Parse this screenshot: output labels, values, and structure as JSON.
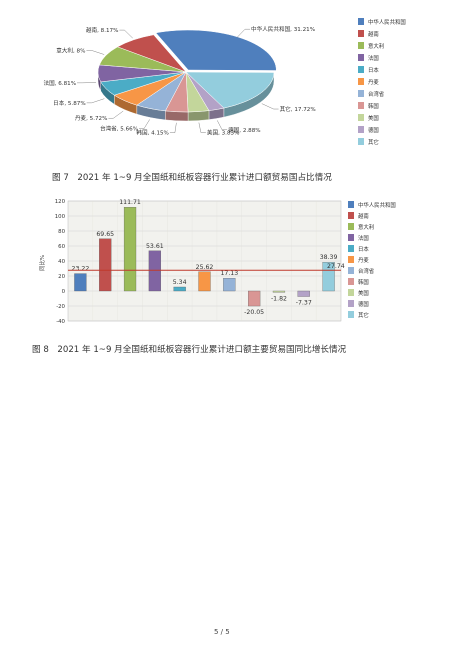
{
  "chart_data": [
    {
      "type": "pie",
      "categories": [
        "中华人民共和国",
        "其它",
        "德国",
        "美国",
        "韩国",
        "台湾省",
        "丹麦",
        "日本",
        "法国",
        "意大利",
        "越南"
      ],
      "values": [
        31.21,
        17.72,
        2.88,
        3.83,
        4.15,
        5.66,
        5.72,
        5.87,
        6.81,
        8.0,
        8.17
      ],
      "slice_labels": [
        "中华人民共和国, 31.21%",
        "其它, 17.72%",
        "德国, 2.88%",
        "美国, 3.83%",
        "韩国, 4.15%",
        "台湾省, 5.66%",
        "丹麦, 5.72%",
        "日本, 5.87%",
        "法国, 6.81%",
        "意大利, 8%",
        "越南, 8.17%"
      ],
      "legend": [
        "中华人民共和国",
        "越南",
        "意大利",
        "法国",
        "日本",
        "丹麦",
        "台湾省",
        "韩国",
        "美国",
        "德国",
        "其它"
      ],
      "legend_colors": [
        "#4f7fbd",
        "#c0504d",
        "#9bbb59",
        "#8064a2",
        "#4bacc6",
        "#f79646",
        "#95b3d7",
        "#d99694",
        "#c3d69b",
        "#b3a2c7",
        "#93cddd"
      ],
      "legend_position": "right",
      "caption": "图 7　2021 年 1~9 月全国纸和纸板容器行业累计进口额贸易国占比情况"
    },
    {
      "type": "bar",
      "categories": [
        "中华人民共和国",
        "越南",
        "意大利",
        "法国",
        "日本",
        "丹麦",
        "台湾省",
        "韩国",
        "美国",
        "德国",
        "其它"
      ],
      "values": [
        23.22,
        69.65,
        111.71,
        53.61,
        5.34,
        25.62,
        17.13,
        -20.05,
        -1.82,
        -7.37,
        38.39
      ],
      "value_labels": [
        "23.22",
        "69.65",
        "111.71",
        "53.61",
        "5.34",
        "25.62",
        "17.13",
        "-20.05",
        "-1.82",
        "-7.37",
        "38.39"
      ],
      "colors": [
        "#4f7fbd",
        "#c0504d",
        "#9bbb59",
        "#8064a2",
        "#4bacc6",
        "#f79646",
        "#95b3d7",
        "#d99694",
        "#c3d69b",
        "#b3a2c7",
        "#93cddd"
      ],
      "reference_line": 27.74,
      "reference_label": "27.74",
      "reference_color": "#c0392b",
      "ylabel": "同比%",
      "ylim": [
        -40,
        120
      ],
      "yticks": [
        "120",
        "100",
        "80",
        "60",
        "40",
        "20",
        "0",
        "-20",
        "-40"
      ],
      "grid": true,
      "legend": [
        "中华人民共和国",
        "越南",
        "意大利",
        "法国",
        "日本",
        "丹麦",
        "台湾省",
        "韩国",
        "美国",
        "德国",
        "其它"
      ],
      "legend_position": "right",
      "caption": "图 8　2021 年 1~9 月全国纸和纸板容器行业累计进口额主要贸易国同比增长情况"
    }
  ],
  "page": {
    "number": "5 / 5"
  }
}
